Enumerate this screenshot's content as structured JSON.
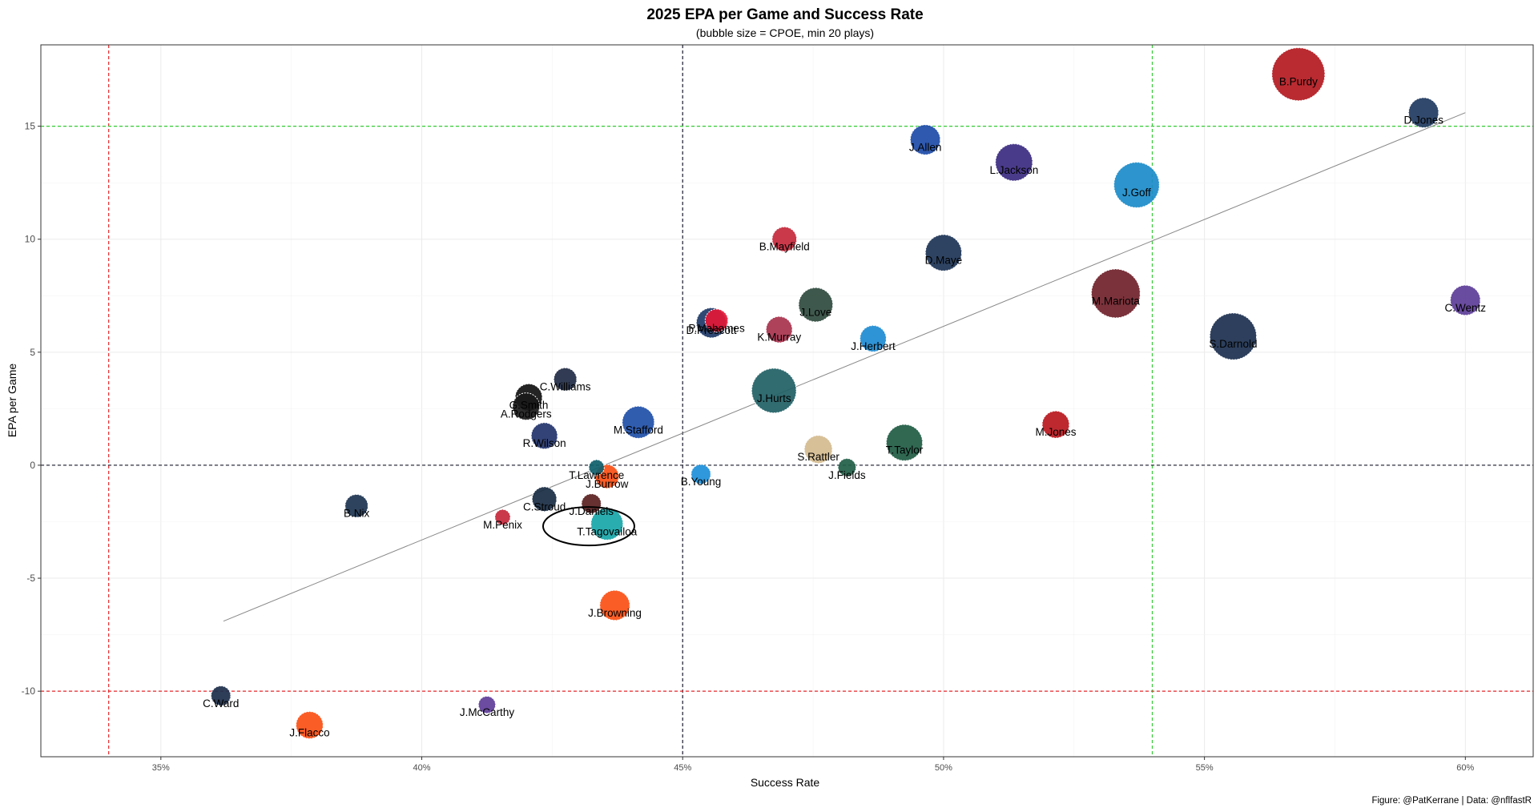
{
  "chart_data": {
    "type": "scatter",
    "title": "2025 EPA per Game and Success Rate",
    "subtitle": "(bubble size = CPOE, min 20 plays)",
    "xlabel": "Success Rate",
    "ylabel": "EPA per Game",
    "caption": "Figure: @PatKerrane | Data: @nflfastR",
    "xlim": [
      0.327,
      0.613
    ],
    "ylim": [
      -12.9,
      18.6
    ],
    "x_ticks": [
      0.35,
      0.4,
      0.45,
      0.5,
      0.55,
      0.6
    ],
    "x_tick_labels": [
      "35%",
      "40%",
      "45%",
      "50%",
      "55%",
      "60%"
    ],
    "y_ticks": [
      -10,
      -5,
      0,
      5,
      10,
      15
    ],
    "y_tick_labels": [
      "-10",
      "-5",
      "0",
      "5",
      "10",
      "15"
    ],
    "grid": true,
    "reference_lines": {
      "vertical": [
        {
          "x": 0.34,
          "color": "#e8262a"
        },
        {
          "x": 0.45,
          "color": "#1a1a2e"
        },
        {
          "x": 0.54,
          "color": "#33cc33"
        }
      ],
      "horizontal": [
        {
          "y": 15,
          "color": "#33cc33"
        },
        {
          "y": 0,
          "color": "#1a1a2e"
        },
        {
          "y": -10,
          "color": "#e8262a"
        }
      ]
    },
    "trend_line": {
      "x": [
        0.362,
        0.6
      ],
      "y": [
        -6.9,
        15.6
      ],
      "color": "#888888"
    },
    "highlight": {
      "label": "T.Tagovailoa",
      "x": 0.432,
      "y": -2.7,
      "shape": "ellipse"
    },
    "points": [
      {
        "label": "B.Purdy",
        "x": 0.568,
        "y": 17.3,
        "size": 1.0,
        "color": "#b3191f"
      },
      {
        "label": "D.Jones",
        "x": 0.592,
        "y": 15.6,
        "size": 0.45,
        "color": "#1f3a5f"
      },
      {
        "label": "J.Allen",
        "x": 0.4965,
        "y": 14.4,
        "size": 0.45,
        "color": "#1d4ba8"
      },
      {
        "label": "L.Jackson",
        "x": 0.5135,
        "y": 13.4,
        "size": 0.62,
        "color": "#3b2a80"
      },
      {
        "label": "J.Goff",
        "x": 0.537,
        "y": 12.4,
        "size": 0.82,
        "color": "#1b8bc9"
      },
      {
        "label": "B.Mayfield",
        "x": 0.4695,
        "y": 10.0,
        "size": 0.32,
        "color": "#c4283b"
      },
      {
        "label": "D.Maye",
        "x": 0.5,
        "y": 9.4,
        "size": 0.6,
        "color": "#1c3355"
      },
      {
        "label": "M.Mariota",
        "x": 0.533,
        "y": 7.6,
        "size": 0.9,
        "color": "#70212a"
      },
      {
        "label": "C.Wentz",
        "x": 0.6,
        "y": 7.3,
        "size": 0.45,
        "color": "#5c3d97"
      },
      {
        "label": "J.Love",
        "x": 0.4755,
        "y": 7.1,
        "size": 0.55,
        "color": "#2f4a3e"
      },
      {
        "label": "P.Mahomes",
        "x": 0.4565,
        "y": 6.4,
        "size": 0.28,
        "color": "#e31837"
      },
      {
        "label": "D.Prescott",
        "x": 0.4555,
        "y": 6.3,
        "size": 0.45,
        "color": "#1e3a68"
      },
      {
        "label": "K.Murray",
        "x": 0.4685,
        "y": 6.0,
        "size": 0.36,
        "color": "#a8324d"
      },
      {
        "label": "J.Herbert",
        "x": 0.4865,
        "y": 5.6,
        "size": 0.36,
        "color": "#1d8bd1"
      },
      {
        "label": "S.Darnold",
        "x": 0.5555,
        "y": 5.7,
        "size": 0.85,
        "color": "#1b2f4e"
      },
      {
        "label": "C.Williams",
        "x": 0.4275,
        "y": 3.8,
        "size": 0.28,
        "color": "#1f2a44"
      },
      {
        "label": "G.Smith",
        "x": 0.4205,
        "y": 3.0,
        "size": 0.38,
        "color": "#111111"
      },
      {
        "label": "A.Rodgers",
        "x": 0.42,
        "y": 2.6,
        "size": 0.38,
        "color": "#1a1a1a"
      },
      {
        "label": "J.Hurts",
        "x": 0.4675,
        "y": 3.3,
        "size": 0.8,
        "color": "#1f5f65"
      },
      {
        "label": "M.Stafford",
        "x": 0.4415,
        "y": 1.9,
        "size": 0.5,
        "color": "#1f4fa8"
      },
      {
        "label": "R.Wilson",
        "x": 0.4235,
        "y": 1.3,
        "size": 0.36,
        "color": "#22336b"
      },
      {
        "label": "T.Taylor",
        "x": 0.4925,
        "y": 1.0,
        "size": 0.6,
        "color": "#1e5b43"
      },
      {
        "label": "M.Jones",
        "x": 0.5215,
        "y": 1.8,
        "size": 0.38,
        "color": "#b8171d"
      },
      {
        "label": "S.Rattler",
        "x": 0.476,
        "y": 0.7,
        "size": 0.4,
        "color": "#d4bb8f"
      },
      {
        "label": "T.Lawrence",
        "x": 0.4335,
        "y": -0.1,
        "size": 0.1,
        "color": "#0e5e6b"
      },
      {
        "label": "J.Fields",
        "x": 0.4815,
        "y": -0.1,
        "size": 0.16,
        "color": "#1f5d47"
      },
      {
        "label": "B.Young",
        "x": 0.4535,
        "y": -0.4,
        "size": 0.2,
        "color": "#1d8fd9"
      },
      {
        "label": "J.Burrow",
        "x": 0.4355,
        "y": -0.5,
        "size": 0.3,
        "color": "#fb4f14"
      },
      {
        "label": "C.Stroud",
        "x": 0.4235,
        "y": -1.5,
        "size": 0.32,
        "color": "#182b43"
      },
      {
        "label": "J.Daniels",
        "x": 0.4325,
        "y": -1.7,
        "size": 0.2,
        "color": "#5a1f1f"
      },
      {
        "label": "T.Tagovailoa",
        "x": 0.4355,
        "y": -2.6,
        "size": 0.5,
        "color": "#17a6a8"
      },
      {
        "label": "B.Nix",
        "x": 0.3875,
        "y": -1.8,
        "size": 0.28,
        "color": "#1c3350"
      },
      {
        "label": "M.Penix",
        "x": 0.4155,
        "y": -2.3,
        "size": 0.1,
        "color": "#c4283b"
      },
      {
        "label": "J.Browning",
        "x": 0.437,
        "y": -6.2,
        "size": 0.45,
        "color": "#fb4f14"
      },
      {
        "label": "C.Ward",
        "x": 0.3615,
        "y": -10.2,
        "size": 0.2,
        "color": "#1c2e4a"
      },
      {
        "label": "J.Flacco",
        "x": 0.3785,
        "y": -11.5,
        "size": 0.38,
        "color": "#fb4f14"
      },
      {
        "label": "J.McCarthy",
        "x": 0.4125,
        "y": -10.6,
        "size": 0.14,
        "color": "#5e3d99"
      }
    ]
  }
}
